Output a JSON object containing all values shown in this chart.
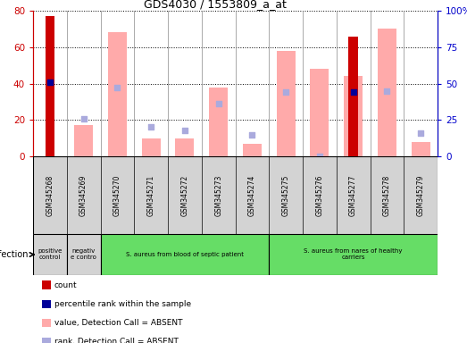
{
  "title": "GDS4030 / 1553809_a_at",
  "samples": [
    "GSM345268",
    "GSM345269",
    "GSM345270",
    "GSM345271",
    "GSM345272",
    "GSM345273",
    "GSM345274",
    "GSM345275",
    "GSM345276",
    "GSM345277",
    "GSM345278",
    "GSM345279"
  ],
  "count_red": [
    77,
    0,
    0,
    0,
    0,
    0,
    0,
    0,
    0,
    66,
    0,
    0
  ],
  "rank_blue": [
    51,
    0,
    0,
    0,
    0,
    0,
    0,
    0,
    0,
    44,
    0,
    0
  ],
  "value_pink": [
    0,
    17,
    68,
    10,
    10,
    38,
    7,
    58,
    48,
    44,
    70,
    8
  ],
  "rank_lightblue": [
    0,
    26,
    47,
    20,
    18,
    36,
    15,
    44,
    0,
    0,
    45,
    16
  ],
  "ylim_left": [
    0,
    80
  ],
  "ylim_right": [
    0,
    100
  ],
  "yticks_left": [
    0,
    20,
    40,
    60,
    80
  ],
  "yticks_right": [
    0,
    25,
    50,
    75,
    100
  ],
  "ytick_labels_left": [
    "0",
    "20",
    "40",
    "60",
    "80"
  ],
  "ytick_labels_right": [
    "0",
    "25",
    "50",
    "75",
    "100%"
  ],
  "groups": [
    {
      "label": "positive\ncontrol",
      "start": 0,
      "end": 1,
      "color": "#d3d3d3"
    },
    {
      "label": "negativ\ne contro",
      "start": 1,
      "end": 2,
      "color": "#d3d3d3"
    },
    {
      "label": "S. aureus from blood of septic patient",
      "start": 2,
      "end": 7,
      "color": "#66dd66"
    },
    {
      "label": "S. aureus from nares of healthy\ncarriers",
      "start": 7,
      "end": 12,
      "color": "#66dd66"
    }
  ],
  "count_color": "#cc0000",
  "rank_color": "#000099",
  "value_absent_color": "#ffaaaa",
  "rank_absent_color": "#aaaadd",
  "axis_left_color": "#cc0000",
  "axis_right_color": "#0000cc",
  "legend_labels": [
    "count",
    "percentile rank within the sample",
    "value, Detection Call = ABSENT",
    "rank, Detection Call = ABSENT"
  ]
}
